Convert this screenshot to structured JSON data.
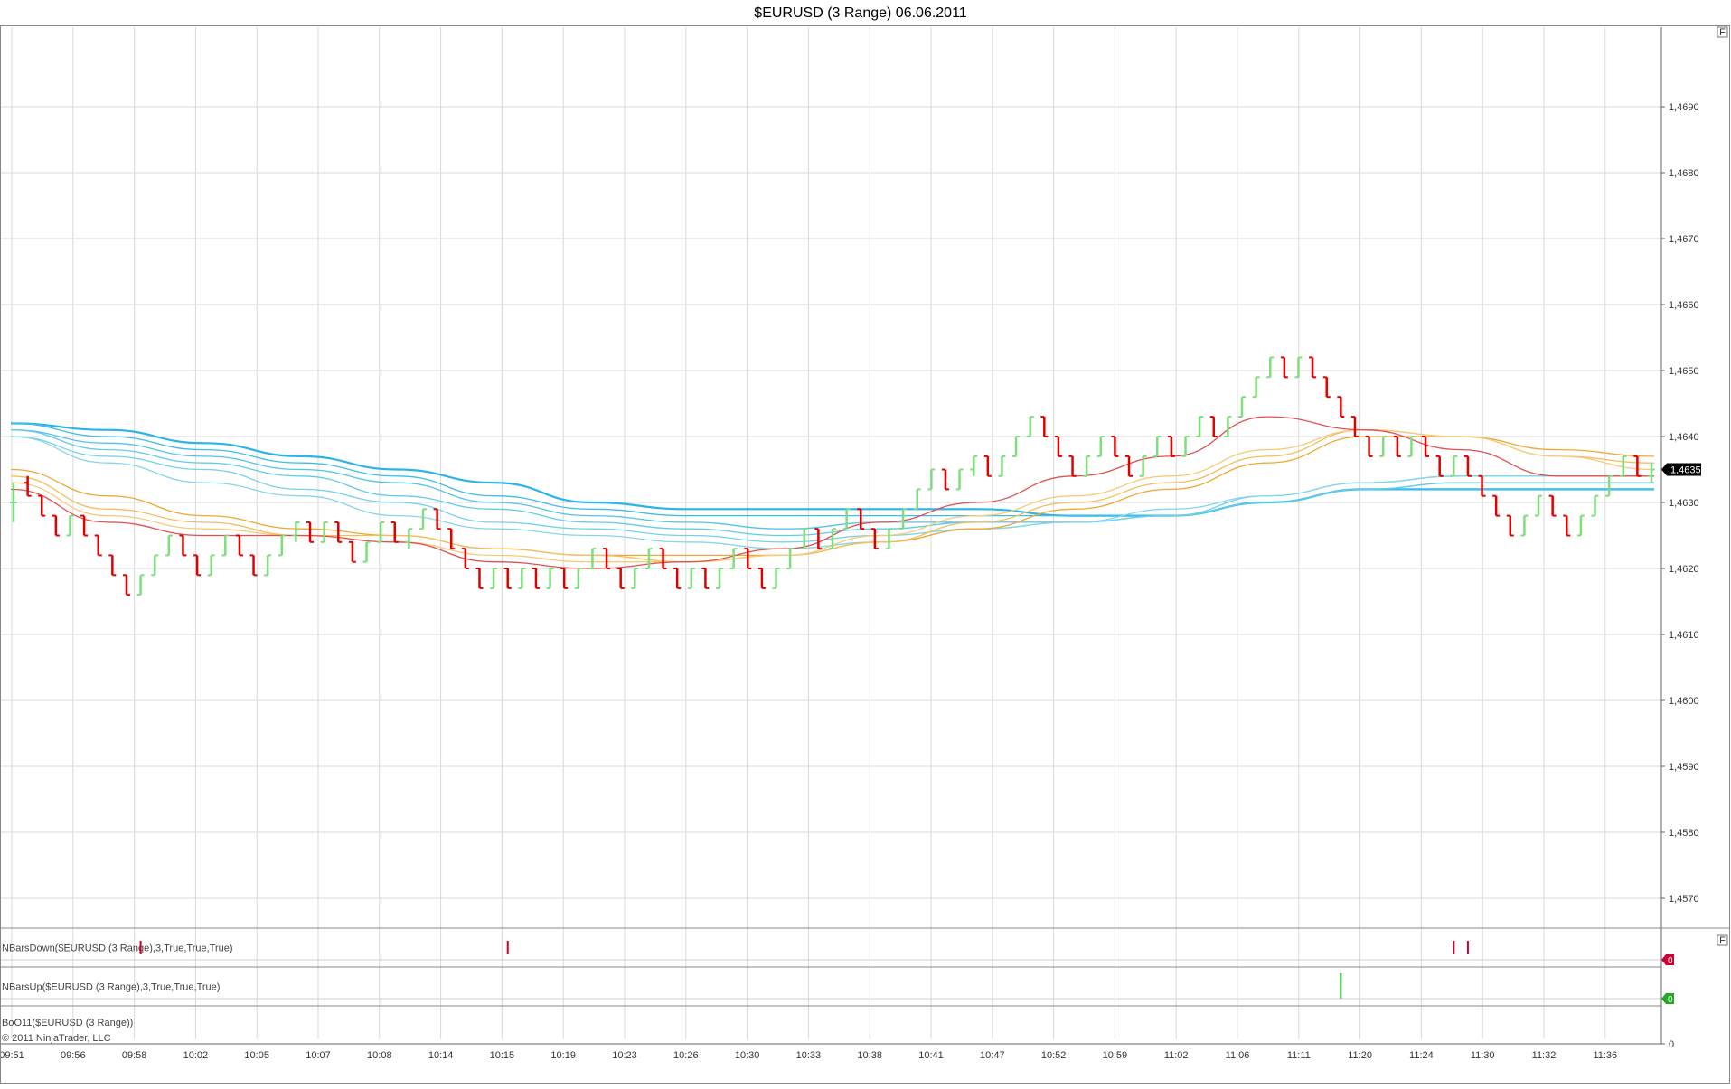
{
  "window": {
    "title": "$EURUSD (3 Range)  06.06.2011",
    "corner_button_label": "F"
  },
  "chart_data": {
    "type": "ohlc-bars",
    "title": "$EURUSD (3 Range)  06.06.2011",
    "ylim": [
      1.4563,
      1.47
    ],
    "y_ticks": [
      "1,4690",
      "1,4680",
      "1,4670",
      "1,4660",
      "1,4650",
      "1,4640",
      "1,4630",
      "1,4620",
      "1,4610",
      "1,4600",
      "1,4590",
      "1,4580",
      "1,4570"
    ],
    "y_tick_values": [
      1.469,
      1.468,
      1.467,
      1.466,
      1.465,
      1.464,
      1.463,
      1.462,
      1.461,
      1.46,
      1.459,
      1.458,
      1.457
    ],
    "x_ticks": [
      "09:51",
      "09:56",
      "09:58",
      "10:02",
      "10:05",
      "10:07",
      "10:08",
      "10:14",
      "10:15",
      "10:19",
      "10:23",
      "10:26",
      "10:30",
      "10:33",
      "10:38",
      "10:41",
      "10:47",
      "10:52",
      "10:59",
      "11:02",
      "11:06",
      "11:11",
      "11:20",
      "11:24",
      "11:30",
      "11:32",
      "11:36"
    ],
    "last_price_label": "1,4635",
    "grid": true,
    "up_color": "#7fdc7f",
    "down_color": "#e00000",
    "bars": [
      [
        1.463,
        1.4633,
        1.4627,
        1.463
      ],
      [
        1.4633,
        1.4634,
        1.4631,
        1.4631
      ],
      [
        1.4631,
        1.4631,
        1.4628,
        1.4628
      ],
      [
        1.4628,
        1.4628,
        1.4625,
        1.4625
      ],
      [
        1.4625,
        1.4628,
        1.4625,
        1.4628
      ],
      [
        1.4628,
        1.4628,
        1.4625,
        1.4625
      ],
      [
        1.4625,
        1.4625,
        1.4622,
        1.4622
      ],
      [
        1.4622,
        1.4622,
        1.4619,
        1.4619
      ],
      [
        1.4619,
        1.4619,
        1.4616,
        1.4616
      ],
      [
        1.4616,
        1.4619,
        1.4616,
        1.4619
      ],
      [
        1.4619,
        1.4622,
        1.4619,
        1.4622
      ],
      [
        1.4622,
        1.4625,
        1.4622,
        1.4625
      ],
      [
        1.4625,
        1.4625,
        1.4622,
        1.4622
      ],
      [
        1.4622,
        1.4622,
        1.4619,
        1.4619
      ],
      [
        1.4619,
        1.4622,
        1.4619,
        1.4622
      ],
      [
        1.4622,
        1.4625,
        1.4622,
        1.4625
      ],
      [
        1.4625,
        1.4625,
        1.4622,
        1.4622
      ],
      [
        1.4622,
        1.4622,
        1.4619,
        1.4619
      ],
      [
        1.4619,
        1.4622,
        1.4619,
        1.4622
      ],
      [
        1.4622,
        1.4625,
        1.4622,
        1.4625
      ],
      [
        1.4625,
        1.4627,
        1.4624,
        1.4627
      ],
      [
        1.4627,
        1.4627,
        1.4624,
        1.4624
      ],
      [
        1.4624,
        1.4627,
        1.4624,
        1.4627
      ],
      [
        1.4627,
        1.4627,
        1.4624,
        1.4624
      ],
      [
        1.4624,
        1.4624,
        1.4621,
        1.4621
      ],
      [
        1.4621,
        1.4624,
        1.4621,
        1.4624
      ],
      [
        1.4624,
        1.4627,
        1.4624,
        1.4627
      ],
      [
        1.4627,
        1.4627,
        1.4624,
        1.4624
      ],
      [
        1.4624,
        1.4626,
        1.4623,
        1.4626
      ],
      [
        1.4626,
        1.4629,
        1.4626,
        1.4629
      ],
      [
        1.4629,
        1.4629,
        1.4626,
        1.4626
      ],
      [
        1.4626,
        1.4626,
        1.4623,
        1.4623
      ],
      [
        1.4623,
        1.4623,
        1.462,
        1.462
      ],
      [
        1.462,
        1.462,
        1.4617,
        1.4617
      ],
      [
        1.4617,
        1.462,
        1.4617,
        1.462
      ],
      [
        1.462,
        1.462,
        1.4617,
        1.4617
      ],
      [
        1.4617,
        1.462,
        1.4617,
        1.462
      ],
      [
        1.462,
        1.462,
        1.4617,
        1.4617
      ],
      [
        1.4617,
        1.462,
        1.4617,
        1.462
      ],
      [
        1.462,
        1.462,
        1.4617,
        1.4617
      ],
      [
        1.4617,
        1.462,
        1.4617,
        1.462
      ],
      [
        1.462,
        1.4623,
        1.462,
        1.4623
      ],
      [
        1.4623,
        1.4623,
        1.462,
        1.462
      ],
      [
        1.462,
        1.462,
        1.4617,
        1.4617
      ],
      [
        1.4617,
        1.462,
        1.4617,
        1.462
      ],
      [
        1.462,
        1.4623,
        1.462,
        1.4623
      ],
      [
        1.4623,
        1.4623,
        1.462,
        1.462
      ],
      [
        1.462,
        1.462,
        1.4617,
        1.4617
      ],
      [
        1.4617,
        1.462,
        1.4617,
        1.462
      ],
      [
        1.462,
        1.462,
        1.4617,
        1.4617
      ],
      [
        1.4617,
        1.462,
        1.4617,
        1.462
      ],
      [
        1.462,
        1.4623,
        1.462,
        1.4623
      ],
      [
        1.4623,
        1.4623,
        1.462,
        1.462
      ],
      [
        1.462,
        1.462,
        1.4617,
        1.4617
      ],
      [
        1.4617,
        1.462,
        1.4617,
        1.462
      ],
      [
        1.462,
        1.4623,
        1.462,
        1.4623
      ],
      [
        1.4623,
        1.4626,
        1.4623,
        1.4626
      ],
      [
        1.4626,
        1.4626,
        1.4623,
        1.4623
      ],
      [
        1.4623,
        1.4626,
        1.4623,
        1.4626
      ],
      [
        1.4626,
        1.4629,
        1.4626,
        1.4629
      ],
      [
        1.4629,
        1.4629,
        1.4626,
        1.4626
      ],
      [
        1.4626,
        1.4626,
        1.4623,
        1.4623
      ],
      [
        1.4623,
        1.4626,
        1.4623,
        1.4626
      ],
      [
        1.4626,
        1.4629,
        1.4626,
        1.4629
      ],
      [
        1.4629,
        1.4632,
        1.4629,
        1.4632
      ],
      [
        1.4632,
        1.4635,
        1.4632,
        1.4635
      ],
      [
        1.4635,
        1.4635,
        1.4632,
        1.4632
      ],
      [
        1.4632,
        1.4635,
        1.4632,
        1.4635
      ],
      [
        1.4635,
        1.4637,
        1.4634,
        1.4637
      ],
      [
        1.4637,
        1.4637,
        1.4634,
        1.4634
      ],
      [
        1.4634,
        1.4637,
        1.4634,
        1.4637
      ],
      [
        1.4637,
        1.464,
        1.4637,
        1.464
      ],
      [
        1.464,
        1.4643,
        1.464,
        1.4643
      ],
      [
        1.4643,
        1.4643,
        1.464,
        1.464
      ],
      [
        1.464,
        1.464,
        1.4637,
        1.4637
      ],
      [
        1.4637,
        1.4637,
        1.4634,
        1.4634
      ],
      [
        1.4634,
        1.4637,
        1.4634,
        1.4637
      ],
      [
        1.4637,
        1.464,
        1.4637,
        1.464
      ],
      [
        1.464,
        1.464,
        1.4637,
        1.4637
      ],
      [
        1.4637,
        1.4637,
        1.4634,
        1.4634
      ],
      [
        1.4634,
        1.4637,
        1.4634,
        1.4637
      ],
      [
        1.4637,
        1.464,
        1.4637,
        1.464
      ],
      [
        1.464,
        1.464,
        1.4637,
        1.4637
      ],
      [
        1.4637,
        1.464,
        1.4637,
        1.464
      ],
      [
        1.464,
        1.4643,
        1.464,
        1.4643
      ],
      [
        1.4643,
        1.4643,
        1.464,
        1.464
      ],
      [
        1.464,
        1.4643,
        1.464,
        1.4643
      ],
      [
        1.4643,
        1.4646,
        1.4643,
        1.4646
      ],
      [
        1.4646,
        1.4649,
        1.4646,
        1.4649
      ],
      [
        1.4649,
        1.4652,
        1.4649,
        1.4652
      ],
      [
        1.4652,
        1.4652,
        1.4649,
        1.4649
      ],
      [
        1.4649,
        1.4652,
        1.4649,
        1.4652
      ],
      [
        1.4652,
        1.4652,
        1.4649,
        1.4649
      ],
      [
        1.4649,
        1.4649,
        1.4646,
        1.4646
      ],
      [
        1.4646,
        1.4646,
        1.4643,
        1.4643
      ],
      [
        1.4643,
        1.4643,
        1.464,
        1.464
      ],
      [
        1.464,
        1.464,
        1.4637,
        1.4637
      ],
      [
        1.4637,
        1.464,
        1.4637,
        1.464
      ],
      [
        1.464,
        1.464,
        1.4637,
        1.4637
      ],
      [
        1.4637,
        1.464,
        1.4637,
        1.464
      ],
      [
        1.464,
        1.464,
        1.4637,
        1.4637
      ],
      [
        1.4637,
        1.4637,
        1.4634,
        1.4634
      ],
      [
        1.4634,
        1.4637,
        1.4634,
        1.4637
      ],
      [
        1.4637,
        1.4637,
        1.4634,
        1.4634
      ],
      [
        1.4634,
        1.4634,
        1.4631,
        1.4631
      ],
      [
        1.4631,
        1.4631,
        1.4628,
        1.4628
      ],
      [
        1.4628,
        1.4628,
        1.4625,
        1.4625
      ],
      [
        1.4625,
        1.4628,
        1.4625,
        1.4628
      ],
      [
        1.4628,
        1.4631,
        1.4628,
        1.4631
      ],
      [
        1.4631,
        1.4631,
        1.4628,
        1.4628
      ],
      [
        1.4628,
        1.4628,
        1.4625,
        1.4625
      ],
      [
        1.4625,
        1.4628,
        1.4625,
        1.4628
      ],
      [
        1.4628,
        1.4631,
        1.4628,
        1.4631
      ],
      [
        1.4631,
        1.4634,
        1.4631,
        1.4634
      ],
      [
        1.4634,
        1.4637,
        1.4634,
        1.4637
      ],
      [
        1.4637,
        1.4637,
        1.4634,
        1.4634
      ],
      [
        1.4634,
        1.4636,
        1.4633,
        1.4635
      ]
    ],
    "ma_series": [
      {
        "color": "#2ab4e8",
        "values": [
          1.4642,
          1.4641,
          1.4639,
          1.4637,
          1.4635,
          1.4633,
          1.463,
          1.4629,
          1.4629,
          1.4629,
          1.4629,
          1.4628,
          1.4628,
          1.463,
          1.4632,
          1.4632,
          1.4632,
          1.4632
        ]
      },
      {
        "color": "#3fbde8",
        "values": [
          1.4642,
          1.464,
          1.4638,
          1.4636,
          1.4634,
          1.4631,
          1.4629,
          1.4628,
          1.4628,
          1.4628,
          1.4628,
          1.4628,
          1.4628,
          1.463,
          1.4632,
          1.4632,
          1.4632,
          1.4632
        ]
      },
      {
        "color": "#52c4e8",
        "values": [
          1.4641,
          1.4639,
          1.4637,
          1.4635,
          1.4633,
          1.463,
          1.4628,
          1.4627,
          1.4626,
          1.4627,
          1.4627,
          1.4627,
          1.4628,
          1.463,
          1.4632,
          1.4633,
          1.4633,
          1.4633
        ]
      },
      {
        "color": "#63cbe8",
        "values": [
          1.4641,
          1.4638,
          1.4636,
          1.4634,
          1.4631,
          1.4629,
          1.4627,
          1.4626,
          1.4625,
          1.4626,
          1.4627,
          1.4627,
          1.4628,
          1.463,
          1.4632,
          1.4633,
          1.4633,
          1.4633
        ]
      },
      {
        "color": "#74d1e8",
        "values": [
          1.464,
          1.4637,
          1.4635,
          1.4632,
          1.463,
          1.4627,
          1.4626,
          1.4625,
          1.4624,
          1.4625,
          1.4626,
          1.4627,
          1.4628,
          1.4631,
          1.4633,
          1.4634,
          1.4634,
          1.4634
        ]
      },
      {
        "color": "#85d6ea",
        "values": [
          1.464,
          1.4636,
          1.4633,
          1.4631,
          1.4628,
          1.4626,
          1.4625,
          1.4624,
          1.4623,
          1.4624,
          1.4626,
          1.4627,
          1.4629,
          1.4631,
          1.4633,
          1.4634,
          1.4634,
          1.4634
        ]
      },
      {
        "color": "#f0a830",
        "values": [
          1.4635,
          1.4631,
          1.4628,
          1.4626,
          1.4625,
          1.4623,
          1.4622,
          1.4622,
          1.4622,
          1.4624,
          1.4626,
          1.4629,
          1.4632,
          1.4636,
          1.464,
          1.464,
          1.4638,
          1.4637
        ]
      },
      {
        "color": "#f3be5e",
        "values": [
          1.4634,
          1.4629,
          1.4627,
          1.4625,
          1.4625,
          1.4623,
          1.4622,
          1.4621,
          1.4622,
          1.4624,
          1.4627,
          1.463,
          1.4633,
          1.4637,
          1.4641,
          1.464,
          1.4637,
          1.4636
        ]
      },
      {
        "color": "#f5cb7a",
        "values": [
          1.4633,
          1.4628,
          1.4626,
          1.4625,
          1.4624,
          1.4622,
          1.4621,
          1.4621,
          1.4622,
          1.4625,
          1.4628,
          1.4631,
          1.4634,
          1.4638,
          1.4641,
          1.464,
          1.4637,
          1.4635
        ]
      },
      {
        "color": "#e05050",
        "values": [
          1.4632,
          1.4627,
          1.4625,
          1.4625,
          1.4624,
          1.4621,
          1.462,
          1.4621,
          1.4623,
          1.4627,
          1.463,
          1.4634,
          1.4637,
          1.4643,
          1.4641,
          1.4638,
          1.4634,
          1.4634
        ]
      }
    ],
    "sub_panels": [
      {
        "label": "NBarsDown($EURUSD (3 Range),3,True,True,True)",
        "color": "#cc0033",
        "marker_value": "0",
        "spike_bars": [
          9,
          35,
          102,
          103
        ]
      },
      {
        "label": "NBarsUp($EURUSD (3 Range),3,True,True,True)",
        "color": "#22aa22",
        "marker_value": "0",
        "spike_bars": [
          94
        ]
      },
      {
        "label": "BoO11($EURUSD (3 Range))",
        "y_tick": "0"
      }
    ],
    "copyright": "© 2011 NinjaTrader, LLC"
  }
}
